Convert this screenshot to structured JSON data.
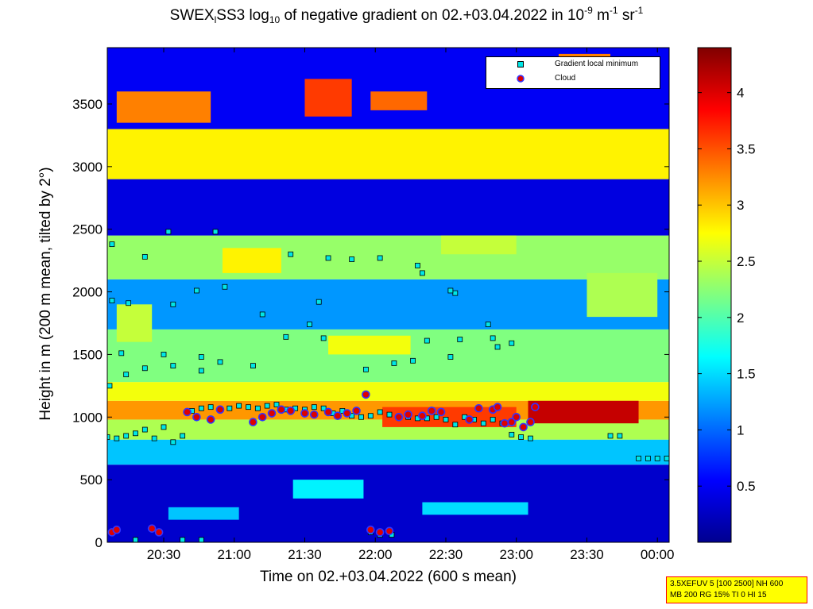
{
  "title_parts": {
    "a": "SWEX",
    "sub1": "l",
    "b": "SS3 log",
    "sub2": "10",
    "c": " of negative gradient on 02.+03.04.2022 in 10",
    "sup1": "-9",
    "d": " m",
    "sup2": "-1",
    "e": " sr",
    "sup3": "-1"
  },
  "chart_data": {
    "type": "heatmap",
    "title": "SWEXlSS3 log10 of negative gradient on 02.+03.04.2022 in 10^-9 m^-1 sr^-1",
    "xlabel": "Time on 02.+03.04.2022 (600 s mean)",
    "ylabel": "Height in m (200 m mean, tilted by 2°)",
    "x_ticks": [
      "20:30",
      "21:00",
      "21:30",
      "22:00",
      "22:30",
      "23:00",
      "23:30",
      "00:00"
    ],
    "x_tick_minutes": [
      1230,
      1260,
      1290,
      1320,
      1350,
      1380,
      1410,
      1440
    ],
    "xlim_minutes": [
      1206,
      1445
    ],
    "y_ticks": [
      "0",
      "500",
      "1000",
      "1500",
      "2000",
      "2500",
      "3000",
      "3500"
    ],
    "y_tick_values": [
      0,
      500,
      1000,
      1500,
      2000,
      2500,
      3000,
      3500
    ],
    "ylim": [
      0,
      3950
    ],
    "colorbar": {
      "ticks": [
        "0.5",
        "1",
        "1.5",
        "2",
        "2.5",
        "3",
        "3.5",
        "4"
      ],
      "tick_values": [
        0.5,
        1,
        1.5,
        2,
        2.5,
        3,
        3.5,
        4
      ],
      "range": [
        0,
        4.4
      ],
      "colormap": "jet"
    },
    "legend": {
      "placement": "top-right",
      "entries": [
        "Gradient local minimum",
        "Cloud"
      ]
    },
    "layers": [
      {
        "y0": 0,
        "y1": 620,
        "value": 0.3
      },
      {
        "y0": 620,
        "y1": 820,
        "value": 1.4
      },
      {
        "y0": 820,
        "y1": 980,
        "value": 2.4
      },
      {
        "y0": 980,
        "y1": 1130,
        "value": 3.2
      },
      {
        "y0": 1130,
        "y1": 1280,
        "value": 2.7
      },
      {
        "y0": 1280,
        "y1": 1700,
        "value": 2.2
      },
      {
        "y0": 1700,
        "y1": 2100,
        "value": 1.2
      },
      {
        "y0": 2100,
        "y1": 2450,
        "value": 2.3
      },
      {
        "y0": 2450,
        "y1": 2900,
        "value": 0.4
      },
      {
        "y0": 2900,
        "y1": 3300,
        "value": 2.8
      },
      {
        "y0": 3300,
        "y1": 3950,
        "value": 0.5
      }
    ],
    "features": [
      {
        "x0": 1232,
        "x1": 1262,
        "y0": 180,
        "y1": 280,
        "value": 1.4
      },
      {
        "x0": 1285,
        "x1": 1315,
        "y0": 350,
        "y1": 500,
        "value": 1.6
      },
      {
        "x0": 1340,
        "x1": 1385,
        "y0": 220,
        "y1": 320,
        "value": 1.5
      },
      {
        "x0": 1385,
        "x1": 1432,
        "y0": 950,
        "y1": 1130,
        "value": 4.1
      },
      {
        "x0": 1323,
        "x1": 1380,
        "y0": 920,
        "y1": 1080,
        "value": 3.6
      },
      {
        "x0": 1210,
        "x1": 1250,
        "y0": 3350,
        "y1": 3600,
        "value": 3.3
      },
      {
        "x0": 1290,
        "x1": 1310,
        "y0": 3400,
        "y1": 3700,
        "value": 3.6
      },
      {
        "x0": 1318,
        "x1": 1342,
        "y0": 3450,
        "y1": 3600,
        "value": 3.4
      },
      {
        "x0": 1398,
        "x1": 1420,
        "y0": 3700,
        "y1": 3900,
        "value": 3.3
      },
      {
        "x0": 1255,
        "x1": 1280,
        "y0": 2150,
        "y1": 2350,
        "value": 2.8
      },
      {
        "x0": 1348,
        "x1": 1380,
        "y0": 2300,
        "y1": 2450,
        "value": 2.5
      },
      {
        "x0": 1210,
        "x1": 1225,
        "y0": 1600,
        "y1": 1900,
        "value": 2.5
      },
      {
        "x0": 1300,
        "x1": 1335,
        "y0": 1500,
        "y1": 1650,
        "value": 2.7
      },
      {
        "x0": 1410,
        "x1": 1440,
        "y0": 1800,
        "y1": 2150,
        "value": 2.4
      }
    ],
    "series": [
      {
        "name": "Gradient local minimum",
        "x": [
          1206,
          1210,
          1214,
          1218,
          1222,
          1226,
          1230,
          1234,
          1238,
          1242,
          1246,
          1250,
          1254,
          1258,
          1262,
          1266,
          1270,
          1274,
          1278,
          1282,
          1286,
          1290,
          1294,
          1298,
          1302,
          1306,
          1310,
          1314,
          1318,
          1322,
          1326,
          1330,
          1334,
          1338,
          1342,
          1346,
          1350,
          1354,
          1358,
          1362,
          1366,
          1370,
          1374,
          1378,
          1382,
          1386,
          1420,
          1424,
          1432,
          1436,
          1440,
          1444,
          1207,
          1214,
          1222,
          1234,
          1246,
          1254,
          1268,
          1282,
          1298,
          1316,
          1328,
          1342,
          1356,
          1372,
          1208,
          1215,
          1234,
          1244,
          1256,
          1272,
          1292,
          1300,
          1310,
          1322,
          1338,
          1354,
          1368,
          1378,
          1208,
          1222,
          1232,
          1252,
          1284,
          1296,
          1340,
          1352,
          1370,
          1212,
          1230,
          1246,
          1336,
          1352,
          1218,
          1238,
          1246,
          1318,
          1322,
          1327
        ],
        "y": [
          840,
          830,
          850,
          870,
          900,
          830,
          920,
          800,
          850,
          1050,
          1070,
          1080,
          1060,
          1070,
          1090,
          1080,
          1070,
          1090,
          1100,
          1060,
          1070,
          1060,
          1080,
          1070,
          1030,
          1050,
          1010,
          1000,
          1010,
          1040,
          1020,
          1000,
          1000,
          990,
          990,
          1000,
          980,
          940,
          1000,
          980,
          950,
          980,
          950,
          860,
          840,
          830,
          850,
          850,
          670,
          670,
          670,
          670,
          1250,
          1340,
          1390,
          1410,
          1370,
          1440,
          1410,
          1640,
          1630,
          1380,
          1430,
          1610,
          1620,
          1560,
          1930,
          1910,
          1900,
          2010,
          2040,
          1820,
          1740,
          2270,
          2260,
          2270,
          2210,
          1990,
          1740,
          1590,
          2380,
          2280,
          2480,
          2480,
          2300,
          1920,
          2150,
          2010,
          1630,
          1510,
          1500,
          1480,
          1450,
          1480,
          20,
          20,
          20,
          80,
          60,
          60
        ]
      },
      {
        "name": "Cloud",
        "x": [
          1208,
          1210,
          1225,
          1228,
          1240,
          1244,
          1250,
          1254,
          1268,
          1272,
          1276,
          1280,
          1284,
          1290,
          1294,
          1300,
          1304,
          1308,
          1312,
          1316,
          1330,
          1334,
          1340,
          1344,
          1348,
          1360,
          1364,
          1370,
          1372,
          1375,
          1378,
          1380,
          1383,
          1386,
          1388,
          1318,
          1322,
          1326
        ],
        "y": [
          80,
          100,
          110,
          80,
          1040,
          1000,
          980,
          1060,
          960,
          1000,
          1030,
          1060,
          1050,
          1030,
          1020,
          1040,
          1010,
          1030,
          1050,
          1180,
          1000,
          1020,
          1010,
          1050,
          1040,
          980,
          1070,
          1060,
          1080,
          950,
          960,
          1000,
          920,
          960,
          1080,
          100,
          80,
          90
        ]
      }
    ]
  },
  "infobox": {
    "line1": "3.5XEFUV 5 [100 2500] NH 600",
    "line2": "MB 200 RG 15% TI 0 HI 15"
  },
  "colors": {
    "marker_face_min": "#00e6e6",
    "marker_edge": "#000000",
    "cloud_face": "#dd0000",
    "cloud_edge": "#3333ff",
    "infobox_bg": "#ffff00",
    "infobox_border": "#ff0000"
  }
}
